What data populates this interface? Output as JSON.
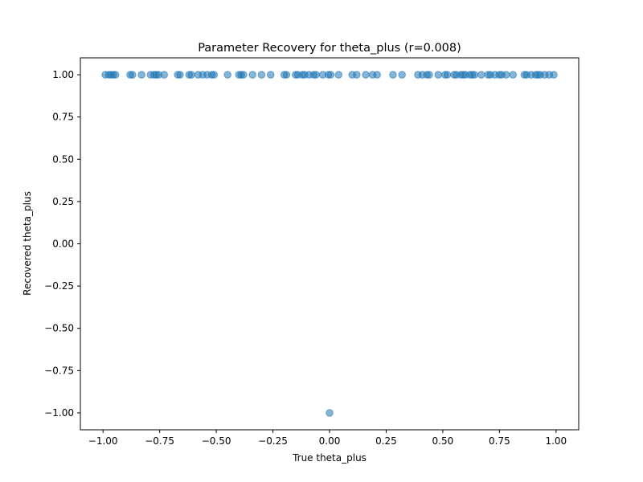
{
  "chart_data": {
    "type": "scatter",
    "title": "Parameter Recovery for theta_plus (r=0.008)",
    "xlabel": "True theta_plus",
    "ylabel": "Recovered theta_plus",
    "xlim": [
      -1.1,
      1.1
    ],
    "ylim": [
      -1.1,
      1.1
    ],
    "xticks": [
      -1.0,
      -0.75,
      -0.5,
      -0.25,
      0.0,
      0.25,
      0.5,
      0.75,
      1.0
    ],
    "xtick_labels": [
      "−1.00",
      "−0.75",
      "−0.50",
      "−0.25",
      "0.00",
      "0.25",
      "0.50",
      "0.75",
      "1.00"
    ],
    "yticks": [
      1.0,
      0.75,
      0.5,
      0.25,
      0.0,
      -0.25,
      -0.5,
      -0.75,
      -1.0
    ],
    "ytick_labels": [
      "1.00",
      "0.75",
      "0.50",
      "0.25",
      "0.00",
      "−0.25",
      "−0.50",
      "−0.75",
      "−1.00"
    ],
    "grid": false,
    "marker_color": "#1f77b4",
    "marker_alpha": 0.55,
    "points": [
      [
        -0.99,
        1.0
      ],
      [
        -0.975,
        1.0
      ],
      [
        -0.965,
        1.0
      ],
      [
        -0.955,
        1.0
      ],
      [
        -0.945,
        1.0
      ],
      [
        -0.88,
        1.0
      ],
      [
        -0.87,
        1.0
      ],
      [
        -0.83,
        1.0
      ],
      [
        -0.79,
        1.0
      ],
      [
        -0.775,
        1.0
      ],
      [
        -0.765,
        1.0
      ],
      [
        -0.755,
        1.0
      ],
      [
        -0.73,
        1.0
      ],
      [
        -0.67,
        1.0
      ],
      [
        -0.66,
        1.0
      ],
      [
        -0.62,
        1.0
      ],
      [
        -0.61,
        1.0
      ],
      [
        -0.58,
        1.0
      ],
      [
        -0.56,
        1.0
      ],
      [
        -0.54,
        1.0
      ],
      [
        -0.52,
        1.0
      ],
      [
        -0.51,
        1.0
      ],
      [
        -0.45,
        1.0
      ],
      [
        -0.4,
        1.0
      ],
      [
        -0.39,
        1.0
      ],
      [
        -0.38,
        1.0
      ],
      [
        -0.34,
        1.0
      ],
      [
        -0.3,
        1.0
      ],
      [
        -0.26,
        1.0
      ],
      [
        -0.2,
        1.0
      ],
      [
        -0.19,
        1.0
      ],
      [
        -0.15,
        1.0
      ],
      [
        -0.14,
        1.0
      ],
      [
        -0.12,
        1.0
      ],
      [
        -0.11,
        1.0
      ],
      [
        -0.09,
        1.0
      ],
      [
        -0.07,
        1.0
      ],
      [
        -0.06,
        1.0
      ],
      [
        -0.03,
        1.0
      ],
      [
        -0.005,
        1.0
      ],
      [
        0.005,
        1.0
      ],
      [
        0.04,
        1.0
      ],
      [
        0.1,
        1.0
      ],
      [
        0.12,
        1.0
      ],
      [
        0.16,
        1.0
      ],
      [
        0.19,
        1.0
      ],
      [
        0.21,
        1.0
      ],
      [
        0.28,
        1.0
      ],
      [
        0.32,
        1.0
      ],
      [
        0.39,
        1.0
      ],
      [
        0.41,
        1.0
      ],
      [
        0.43,
        1.0
      ],
      [
        0.44,
        1.0
      ],
      [
        0.48,
        1.0
      ],
      [
        0.51,
        1.0
      ],
      [
        0.52,
        1.0
      ],
      [
        0.55,
        1.0
      ],
      [
        0.56,
        1.0
      ],
      [
        0.58,
        1.0
      ],
      [
        0.59,
        1.0
      ],
      [
        0.6,
        1.0
      ],
      [
        0.62,
        1.0
      ],
      [
        0.63,
        1.0
      ],
      [
        0.64,
        1.0
      ],
      [
        0.67,
        1.0
      ],
      [
        0.7,
        1.0
      ],
      [
        0.71,
        1.0
      ],
      [
        0.73,
        1.0
      ],
      [
        0.75,
        1.0
      ],
      [
        0.76,
        1.0
      ],
      [
        0.78,
        1.0
      ],
      [
        0.81,
        1.0
      ],
      [
        0.86,
        1.0
      ],
      [
        0.87,
        1.0
      ],
      [
        0.89,
        1.0
      ],
      [
        0.91,
        1.0
      ],
      [
        0.92,
        1.0
      ],
      [
        0.93,
        1.0
      ],
      [
        0.95,
        1.0
      ],
      [
        0.97,
        1.0
      ],
      [
        0.99,
        1.0
      ],
      [
        0.0,
        -1.0
      ]
    ]
  }
}
